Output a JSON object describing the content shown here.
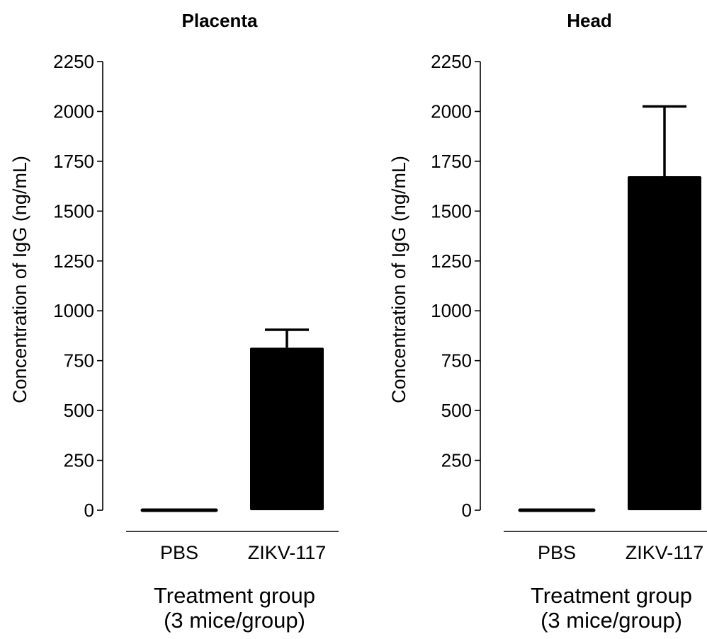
{
  "chart_data": [
    {
      "type": "bar",
      "title": "Placenta",
      "categories": [
        "PBS",
        "ZIKV-117"
      ],
      "values": [
        0,
        815
      ],
      "error_upper": [
        0,
        905
      ],
      "ylabel": "Concentration of  IgG (ng/mL)",
      "xlabel_line1": "Treatment group",
      "xlabel_line2": "(3 mice/group)",
      "ylim": [
        0,
        2250
      ],
      "yticks": [
        "0",
        "250",
        "500",
        "750",
        "1000",
        "1250",
        "1500",
        "1750",
        "2000",
        "2250"
      ],
      "grid": false,
      "bar_color": "#000000"
    },
    {
      "type": "bar",
      "title": "Head",
      "categories": [
        "PBS",
        "ZIKV-117"
      ],
      "values": [
        0,
        1675
      ],
      "error_upper": [
        0,
        2025
      ],
      "ylabel": "Concentration of  IgG (ng/mL)",
      "xlabel_line1": "Treatment group",
      "xlabel_line2": "(3 mice/group)",
      "ylim": [
        0,
        2250
      ],
      "yticks": [
        "0",
        "250",
        "500",
        "750",
        "1000",
        "1250",
        "1500",
        "1750",
        "2000",
        "2250"
      ],
      "grid": false,
      "bar_color": "#000000"
    }
  ]
}
